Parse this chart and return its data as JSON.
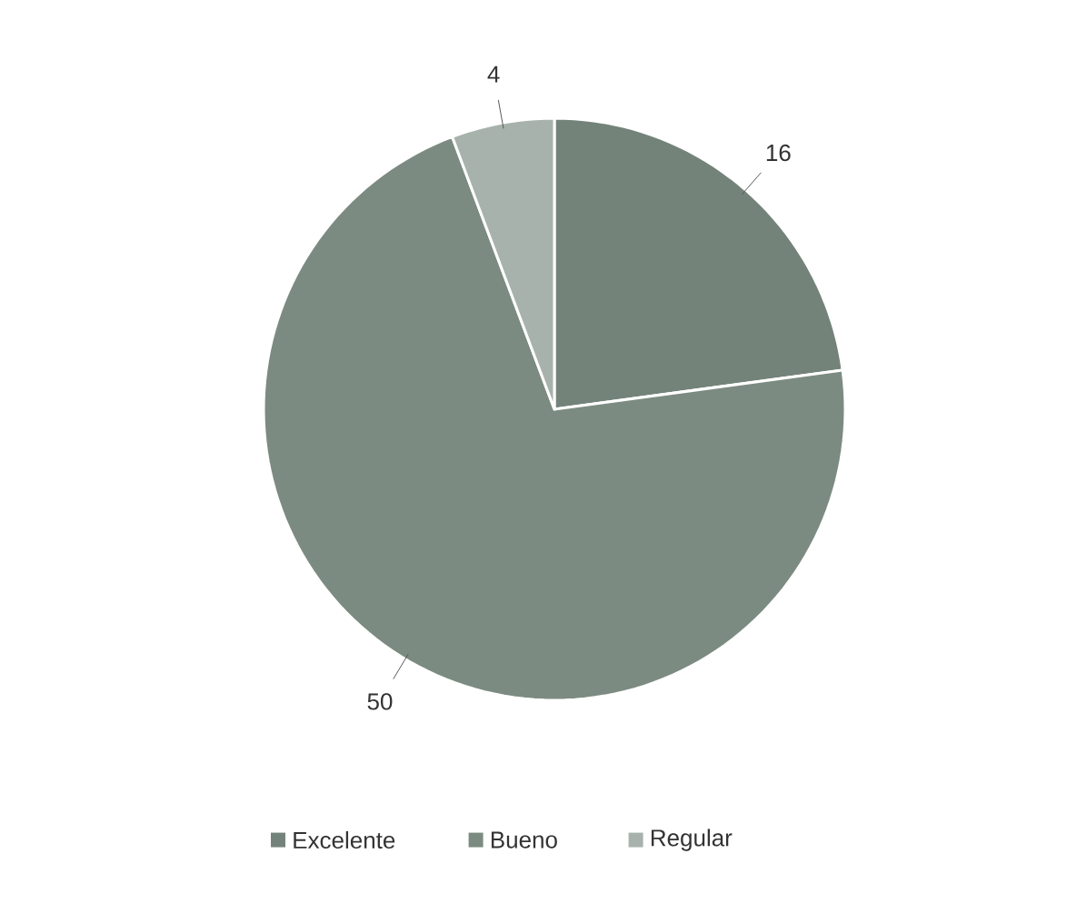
{
  "chart_data": {
    "type": "pie",
    "categories": [
      "Excelente",
      "Bueno",
      "Regular"
    ],
    "values": [
      16,
      50,
      4
    ],
    "colors": [
      "#74837a",
      "#7c8b81",
      "#a8b2ac"
    ],
    "data_labels": true,
    "legend": "bottom"
  }
}
